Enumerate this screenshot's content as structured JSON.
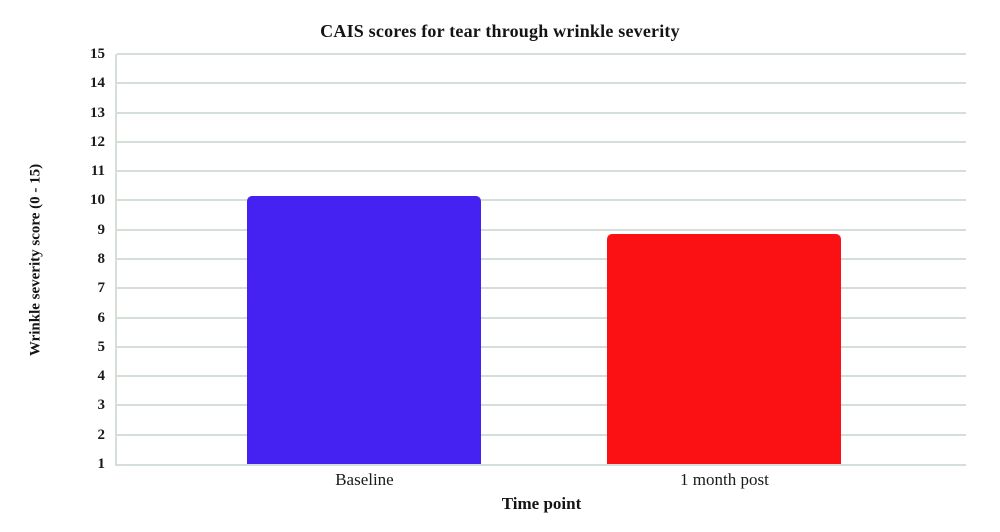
{
  "chart_data": {
    "type": "bar",
    "title": "CAIS scores for tear through wrinkle severity",
    "xlabel": "Time point",
    "ylabel": "Wrinkle severity score (0 - 15)",
    "categories": [
      "Baseline",
      "1 month post"
    ],
    "values": [
      10.15,
      8.85
    ],
    "series": [
      {
        "name": "Baseline",
        "value": 10.15,
        "color": "#4622f2"
      },
      {
        "name": "1 month post",
        "value": 8.85,
        "color": "#fb1014"
      }
    ],
    "ylim": [
      1,
      15
    ],
    "yticks": [
      1,
      2,
      3,
      4,
      5,
      6,
      7,
      8,
      9,
      10,
      11,
      12,
      13,
      14,
      15
    ],
    "grid": "horizontal",
    "legend": "none",
    "gridline_color": "#d6ded8",
    "background_color": "#ffffff",
    "text_color": "#1a1a1a"
  }
}
